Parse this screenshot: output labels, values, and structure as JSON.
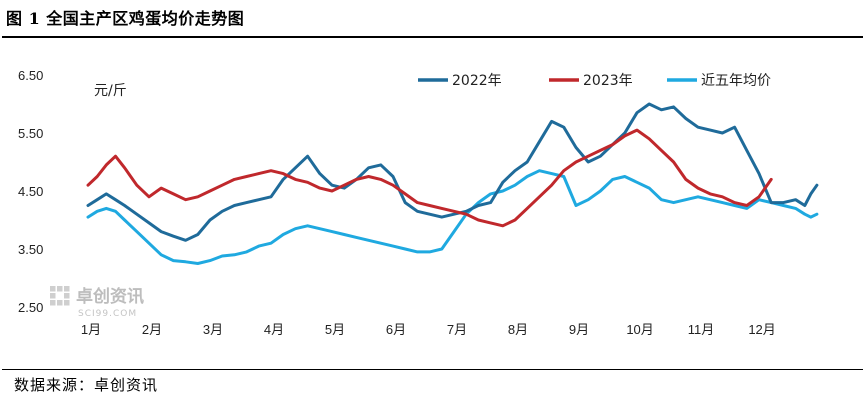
{
  "title": "图 1 全国主产区鸡蛋均价走势图",
  "source": "数据来源：卓创资讯",
  "watermark": {
    "brand": "卓创资讯",
    "site": "SCI99.COM"
  },
  "chart_data": {
    "type": "line",
    "unit_label": "元/斤",
    "ylim": [
      2.5,
      6.5
    ],
    "yticks": [
      "6.50",
      "5.50",
      "4.50",
      "3.50",
      "2.50"
    ],
    "ytick_values": [
      6.5,
      5.5,
      4.5,
      3.5,
      2.5
    ],
    "xlim": [
      0,
      12
    ],
    "categories": [
      "1月",
      "2月",
      "3月",
      "4月",
      "5月",
      "6月",
      "7月",
      "8月",
      "9月",
      "10月",
      "11月",
      "12月"
    ],
    "grid": false,
    "legend_position": "top",
    "series": [
      {
        "name": "2022年",
        "color": "#1f6b9a",
        "x": [
          0,
          0.15,
          0.3,
          0.45,
          0.6,
          0.8,
          1.0,
          1.2,
          1.4,
          1.6,
          1.8,
          2.0,
          2.2,
          2.4,
          2.6,
          2.8,
          3.0,
          3.2,
          3.4,
          3.6,
          3.8,
          4.0,
          4.2,
          4.4,
          4.6,
          4.8,
          5.0,
          5.2,
          5.4,
          5.6,
          5.8,
          6.0,
          6.2,
          6.4,
          6.6,
          6.8,
          7.0,
          7.2,
          7.4,
          7.6,
          7.8,
          8.0,
          8.2,
          8.4,
          8.6,
          8.8,
          9.0,
          9.2,
          9.4,
          9.6,
          9.8,
          10.0,
          10.2,
          10.4,
          10.6,
          10.8,
          11.0,
          11.2,
          11.4,
          11.6,
          11.75,
          11.85,
          11.95
        ],
        "values": [
          4.25,
          4.35,
          4.45,
          4.35,
          4.25,
          4.1,
          3.95,
          3.8,
          3.72,
          3.65,
          3.75,
          4.0,
          4.15,
          4.25,
          4.3,
          4.35,
          4.4,
          4.7,
          4.9,
          5.1,
          4.8,
          4.6,
          4.55,
          4.7,
          4.9,
          4.95,
          4.75,
          4.3,
          4.15,
          4.1,
          4.05,
          4.1,
          4.15,
          4.25,
          4.3,
          4.65,
          4.85,
          5.0,
          5.35,
          5.7,
          5.6,
          5.25,
          5.0,
          5.1,
          5.3,
          5.5,
          5.85,
          6.0,
          5.9,
          5.95,
          5.75,
          5.6,
          5.55,
          5.5,
          5.6,
          5.2,
          4.8,
          4.3,
          4.3,
          4.35,
          4.25,
          4.45,
          4.6
        ]
      },
      {
        "name": "2023年",
        "color": "#c0282c",
        "x": [
          0,
          0.15,
          0.3,
          0.45,
          0.6,
          0.8,
          1.0,
          1.2,
          1.4,
          1.6,
          1.8,
          2.0,
          2.2,
          2.4,
          2.6,
          2.8,
          3.0,
          3.2,
          3.4,
          3.6,
          3.8,
          4.0,
          4.2,
          4.4,
          4.6,
          4.8,
          5.0,
          5.2,
          5.4,
          5.6,
          5.8,
          6.0,
          6.2,
          6.4,
          6.6,
          6.8,
          7.0,
          7.2,
          7.4,
          7.6,
          7.8,
          8.0,
          8.2,
          8.4,
          8.6,
          8.8,
          9.0,
          9.2,
          9.4,
          9.6,
          9.8,
          10.0,
          10.2,
          10.4,
          10.6,
          10.8,
          11.0,
          11.2
        ],
        "values": [
          4.6,
          4.75,
          4.95,
          5.1,
          4.9,
          4.6,
          4.4,
          4.55,
          4.45,
          4.35,
          4.4,
          4.5,
          4.6,
          4.7,
          4.75,
          4.8,
          4.85,
          4.8,
          4.7,
          4.65,
          4.55,
          4.5,
          4.6,
          4.7,
          4.75,
          4.7,
          4.6,
          4.45,
          4.3,
          4.25,
          4.2,
          4.15,
          4.1,
          4.0,
          3.95,
          3.9,
          4.0,
          4.2,
          4.4,
          4.6,
          4.85,
          5.0,
          5.1,
          5.2,
          5.3,
          5.45,
          5.55,
          5.4,
          5.2,
          5.0,
          4.7,
          4.55,
          4.45,
          4.4,
          4.3,
          4.25,
          4.4,
          4.7
        ]
      },
      {
        "name": "近五年均价",
        "color": "#1fa9e0",
        "x": [
          0,
          0.15,
          0.3,
          0.45,
          0.6,
          0.8,
          1.0,
          1.2,
          1.4,
          1.6,
          1.8,
          2.0,
          2.2,
          2.4,
          2.6,
          2.8,
          3.0,
          3.2,
          3.4,
          3.6,
          3.8,
          4.0,
          4.2,
          4.4,
          4.6,
          4.8,
          5.0,
          5.2,
          5.4,
          5.6,
          5.8,
          6.0,
          6.2,
          6.4,
          6.6,
          6.8,
          7.0,
          7.2,
          7.4,
          7.6,
          7.8,
          8.0,
          8.2,
          8.4,
          8.6,
          8.8,
          9.0,
          9.2,
          9.4,
          9.6,
          9.8,
          10.0,
          10.2,
          10.4,
          10.6,
          10.8,
          11.0,
          11.2,
          11.4,
          11.6,
          11.75,
          11.85,
          11.95
        ],
        "values": [
          4.05,
          4.15,
          4.2,
          4.15,
          4.0,
          3.8,
          3.6,
          3.4,
          3.3,
          3.28,
          3.25,
          3.3,
          3.38,
          3.4,
          3.45,
          3.55,
          3.6,
          3.75,
          3.85,
          3.9,
          3.85,
          3.8,
          3.75,
          3.7,
          3.65,
          3.6,
          3.55,
          3.5,
          3.45,
          3.45,
          3.5,
          3.8,
          4.1,
          4.3,
          4.45,
          4.5,
          4.6,
          4.75,
          4.85,
          4.8,
          4.75,
          4.25,
          4.35,
          4.5,
          4.7,
          4.75,
          4.65,
          4.55,
          4.35,
          4.3,
          4.35,
          4.4,
          4.35,
          4.3,
          4.25,
          4.2,
          4.35,
          4.3,
          4.25,
          4.2,
          4.1,
          4.05,
          4.1
        ]
      }
    ]
  }
}
